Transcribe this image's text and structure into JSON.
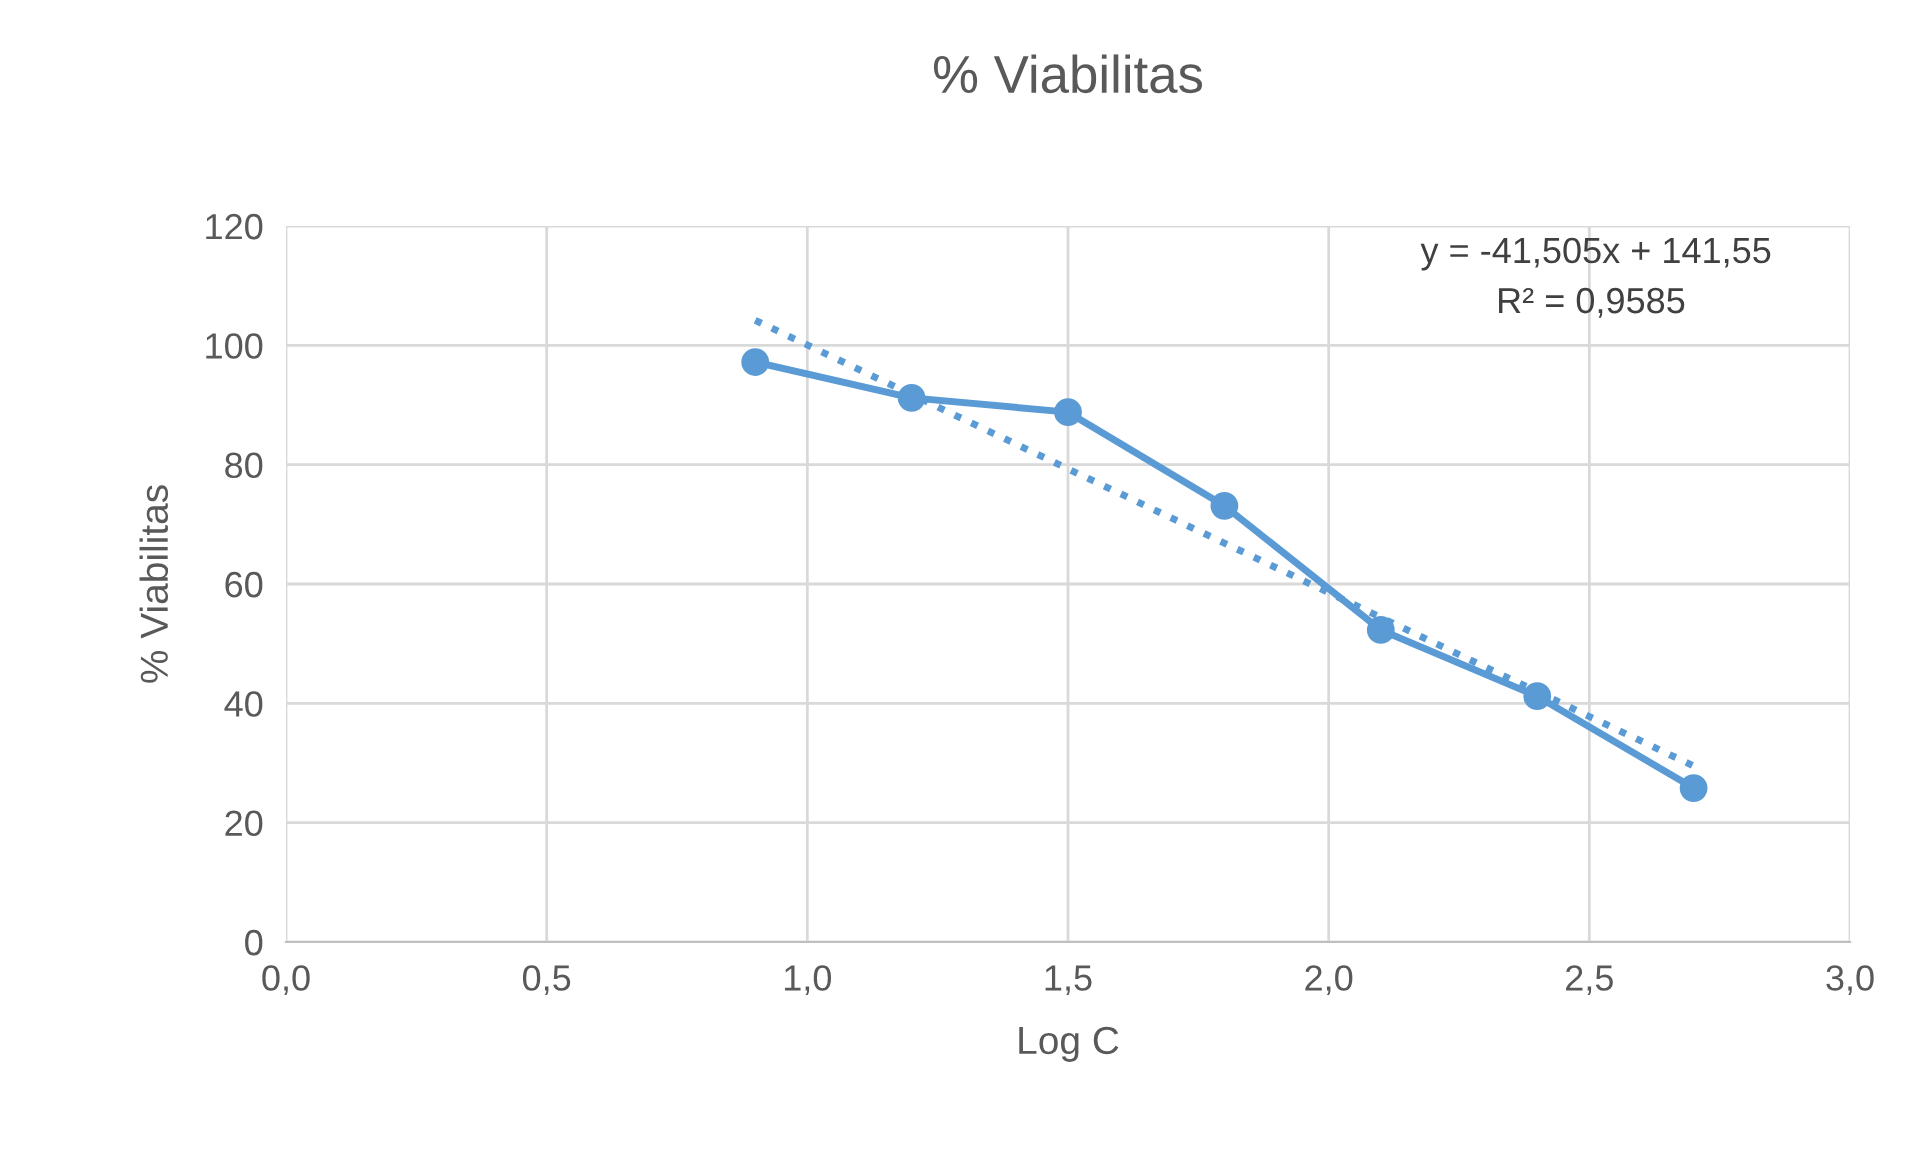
{
  "chart_data": {
    "type": "line",
    "title": "% Viabilitas",
    "xlabel": "Log C",
    "ylabel": "% Viabilitas",
    "series": [
      {
        "x": [
          0.9,
          1.2,
          1.5,
          1.8,
          2.1,
          2.4,
          2.7
        ],
        "values": [
          97.2,
          91.2,
          88.8,
          73.1,
          52.3,
          41.2,
          25.8
        ],
        "color": "#5b9bd5",
        "marker": "circle",
        "line_style": "solid"
      },
      {
        "x": [
          0.9,
          2.7
        ],
        "values": [
          104.2,
          29.5
        ],
        "color": "#5b9bd5",
        "marker": "none",
        "line_style": "dotted"
      }
    ],
    "annotations": [
      "y = -41,505x + 141,55",
      "R² = 0,9585"
    ],
    "xlim": [
      0,
      3
    ],
    "xticks": [
      {
        "value": 0,
        "label": "0,0"
      },
      {
        "value": 0.5,
        "label": "0,5"
      },
      {
        "value": 1,
        "label": "1,0"
      },
      {
        "value": 1.5,
        "label": "1,5"
      },
      {
        "value": 2,
        "label": "2,0"
      },
      {
        "value": 2.5,
        "label": "2,5"
      },
      {
        "value": 3,
        "label": "3,0"
      }
    ],
    "ylim": [
      0,
      120
    ],
    "yticks": [
      0,
      20,
      40,
      60,
      80,
      100,
      120
    ],
    "grid": true,
    "legend": false
  }
}
